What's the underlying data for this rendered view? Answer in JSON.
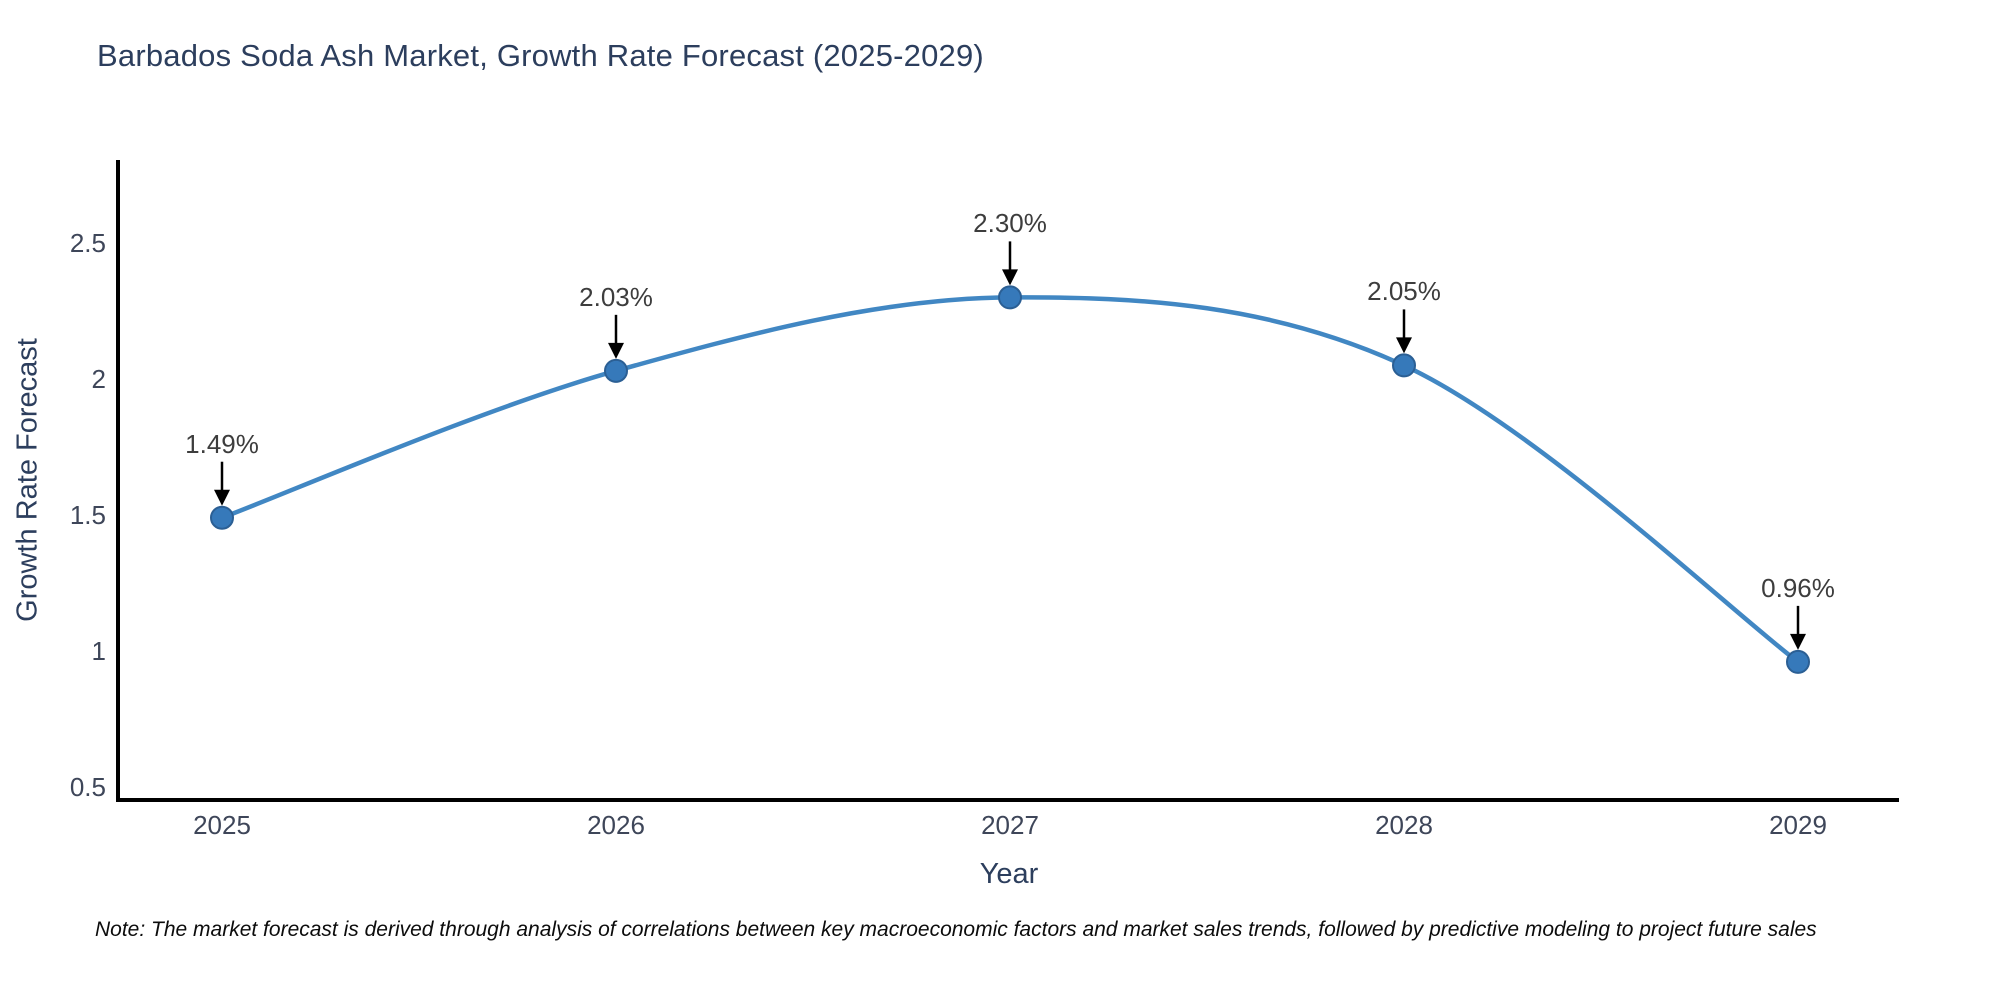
{
  "title": "Barbados Soda Ash Market, Growth Rate Forecast (2025-2029)",
  "note": "Note: The market forecast is derived through analysis of correlations between key macroeconomic factors and market sales trends, followed by predictive modeling to project future sales",
  "chart_data": {
    "type": "line",
    "line_shape": "spline",
    "title": "Barbados Soda Ash Market, Growth Rate Forecast (2025-2029)",
    "xlabel": "Year",
    "ylabel": "Growth Rate Forecast",
    "x": [
      2025,
      2026,
      2027,
      2028,
      2029
    ],
    "values": [
      1.49,
      2.03,
      2.3,
      2.05,
      0.96
    ],
    "point_labels": [
      "1.49%",
      "2.03%",
      "2.30%",
      "2.05%",
      "0.96%"
    ],
    "xtick_labels": [
      "2025",
      "2026",
      "2027",
      "2028",
      "2029"
    ],
    "ytick_values": [
      0.5,
      1,
      1.5,
      2,
      2.5
    ],
    "ytick_labels": [
      "0.5",
      "1",
      "1.5",
      "2",
      "2.5"
    ],
    "ylim": [
      0.45,
      2.75
    ],
    "grid": false,
    "legend": "none",
    "colors": {
      "line": "#4187c3",
      "marker_fill": "#3679ba",
      "marker_edge": "#2b5f94",
      "axis": "#000000",
      "annotation_arrow": "#000000",
      "annotation_text": "#3d3d3d",
      "title_text": "#2c3e5d",
      "tick_text": "#3e4659"
    }
  }
}
